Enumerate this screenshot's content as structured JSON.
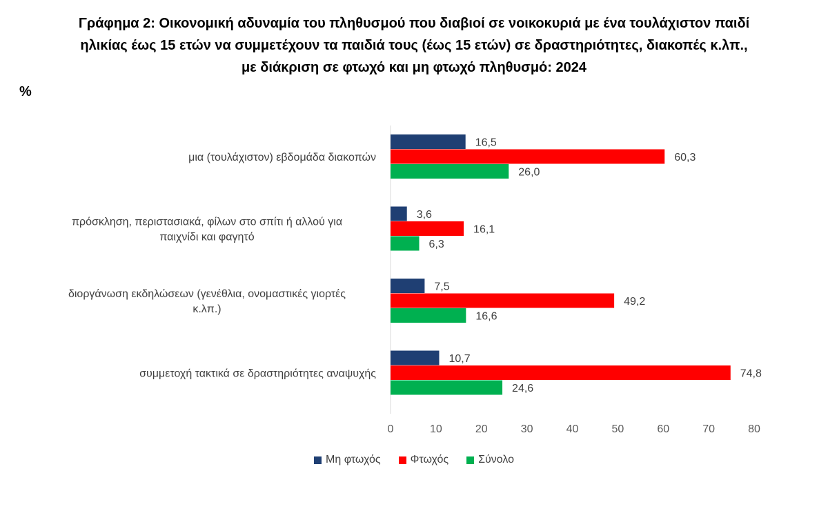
{
  "title": {
    "line1": "Γράφημα 2: Οικονομική αδυναμία του πληθυσμού που διαβιοί σε νοικοκυριά με ένα τουλάχιστον παιδί",
    "line2": "ηλικίας έως 15 ετών να συμμετέχουν τα παιδιά τους (έως 15 ετών) σε δραστηριότητες, διακοπές κ.λπ.,",
    "line3": "με διάκριση σε φτωχό και μη φτωχό πληθυσμό: 2024"
  },
  "unit": "%",
  "chart_data": {
    "type": "bar",
    "orientation": "horizontal",
    "categories": [
      [
        "μια (τουλάχιστον) εβδομάδα διακοπών"
      ],
      [
        "πρόσκληση, περιστασιακά, φίλων στο σπίτι ή αλλού για",
        "παιχνίδι και φαγητό"
      ],
      [
        "διοργάνωση εκδηλώσεων (γενέθλια, ονομαστικές γιορτές",
        "κ.λπ.)"
      ],
      [
        "συμμετοχή τακτικά σε δραστηριότητες αναψυχής"
      ]
    ],
    "series": [
      {
        "name": "Μη φτωχός",
        "color": "#1f3f73",
        "values": [
          16.5,
          3.6,
          7.5,
          10.7
        ],
        "labels": [
          "16,5",
          "3,6",
          "7,5",
          "10,7"
        ]
      },
      {
        "name": "Φτωχός",
        "color": "#ff0000",
        "values": [
          60.3,
          16.1,
          49.2,
          74.8
        ],
        "labels": [
          "60,3",
          "16,1",
          "49,2",
          "74,8"
        ]
      },
      {
        "name": "Σύνολο",
        "color": "#00b050",
        "values": [
          26.0,
          6.3,
          16.6,
          24.6
        ],
        "labels": [
          "26,0",
          "6,3",
          "16,6",
          "24,6"
        ]
      }
    ],
    "xlim": [
      0,
      80
    ],
    "xticks": [
      "0",
      "10",
      "20",
      "30",
      "40",
      "50",
      "60",
      "70",
      "80"
    ],
    "grid": false,
    "legend_position": "bottom"
  }
}
